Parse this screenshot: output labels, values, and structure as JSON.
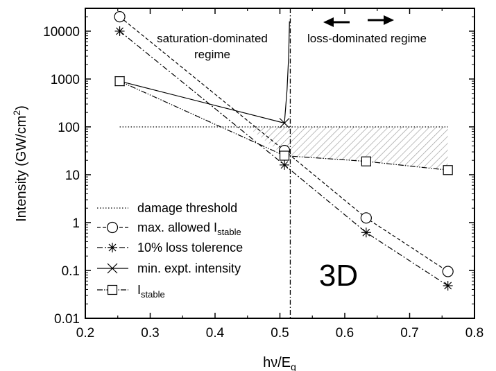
{
  "chart_data": {
    "type": "line",
    "xlabel": "hν/E",
    "xlabel_sub": "g",
    "ylabel": "Intensity (GW/cm",
    "ylabel_sup": "2",
    "ylabel_end": ")",
    "xlim": [
      0.2,
      0.8
    ],
    "ylim": [
      0.01,
      30000
    ],
    "yscale": "log",
    "grid": false,
    "legend_position": "bottom-left",
    "x_ticks": [
      0.2,
      0.3,
      0.4,
      0.5,
      0.6,
      0.7,
      0.8
    ],
    "x_tick_labels": [
      "0.2",
      "0.3",
      "0.4",
      "0.5",
      "0.6",
      "0.7",
      "0.8"
    ],
    "y_ticks": [
      0.01,
      0.1,
      1,
      10,
      100,
      1000,
      10000
    ],
    "y_tick_labels": [
      "0.01",
      "0.1",
      "1",
      "10",
      "100",
      "1000",
      "10000"
    ],
    "series": [
      {
        "key": "damage",
        "name": "damage threshold",
        "line_style": "dotted",
        "marker": "none",
        "x": [
          0.253,
          0.759
        ],
        "y": [
          100,
          100
        ]
      },
      {
        "key": "max_allowed",
        "name": "max. allowed I",
        "name_sub": "stable",
        "line_style": "dashed",
        "marker": "circle",
        "x": [
          0.253,
          0.507,
          0.633,
          0.759
        ],
        "y": [
          20000,
          32,
          1.25,
          0.095
        ]
      },
      {
        "key": "loss_tol",
        "name": "10% loss tolerence",
        "line_style": "dashdot",
        "marker": "asterisk",
        "x": [
          0.253,
          0.507,
          0.633,
          0.759
        ],
        "y": [
          10000,
          16,
          0.62,
          0.048
        ]
      },
      {
        "key": "min_expt",
        "name": "min. expt. intensity",
        "line_style": "solid",
        "marker": "x",
        "x": [
          0.253,
          0.507
        ],
        "y": [
          900,
          120
        ],
        "curve_up": {
          "x": [
            0.507,
            0.511,
            0.5135,
            0.5148
          ],
          "y": [
            120,
            600,
            3000,
            16000
          ]
        }
      },
      {
        "key": "i_stable",
        "name": "I",
        "name_sub": "stable",
        "line_style": "dashdotdot",
        "marker": "square",
        "x": [
          0.253,
          0.507,
          0.633,
          0.759
        ],
        "y": [
          900,
          25,
          19,
          12.5
        ]
      }
    ],
    "vertical_line": {
      "x": 0.516
    },
    "shaded_region": {
      "description": "hatched",
      "top": {
        "x": [
          0.45,
          0.759
        ],
        "y": [
          100,
          100
        ]
      },
      "bottom": {
        "x": [
          0.507,
          0.633,
          0.759
        ],
        "y": [
          25,
          19,
          12.5
        ]
      }
    },
    "annotations": {
      "left_regime_line1": "saturation-dominated",
      "left_regime_line2": "regime",
      "right_regime": "loss-dominated regime",
      "panel_tag": "3D"
    }
  }
}
